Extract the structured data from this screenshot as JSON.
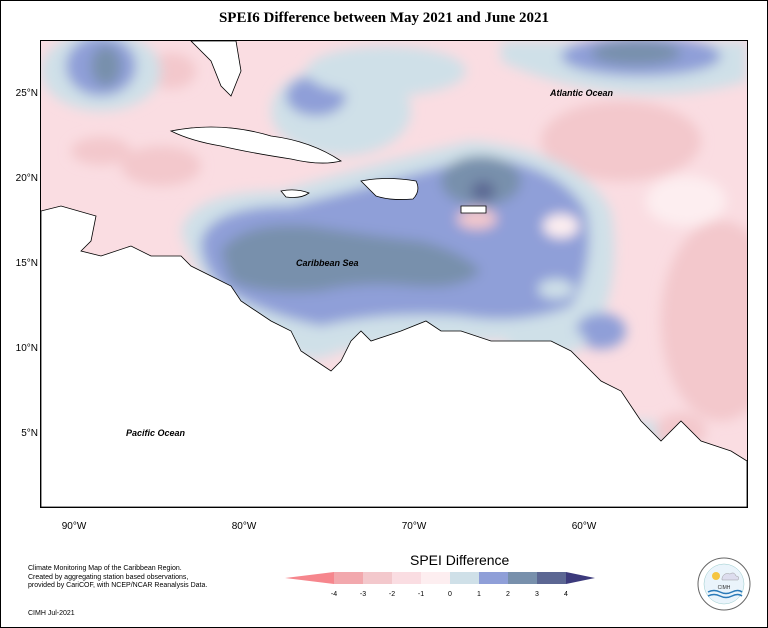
{
  "title": "SPEI6 Difference between May 2021 and June 2021",
  "axes": {
    "lat_labels": [
      "25°N",
      "20°N",
      "15°N",
      "10°N",
      "5°N"
    ],
    "lon_labels": [
      "90°W",
      "80°W",
      "70°W",
      "60°W"
    ]
  },
  "map_labels": {
    "atlantic": "Atlantic Ocean",
    "caribbean": "Caribbean Sea",
    "pacific": "Pacific Ocean"
  },
  "legend": {
    "title": "SPEI Difference",
    "ticks": [
      "-4",
      "-3",
      "-2",
      "-1",
      "0",
      "1",
      "2",
      "3",
      "4"
    ],
    "colors": [
      "#f6868d",
      "#f2a8ad",
      "#f3c8cc",
      "#fadde2",
      "#fdeef0",
      "#cfe0e8",
      "#8f9fd8",
      "#7890ac",
      "#5c6793",
      "#3c3a7c"
    ]
  },
  "credits": {
    "lines": [
      "Climate Monitoring Map of the Caribbean Region.",
      "Created by aggregating station based observations,",
      "provided by CariCOF, with NCEP/NCAR Reanalysis Data."
    ],
    "date": "CIMH Jul-2021"
  },
  "logo": {
    "text": "CIMH"
  }
}
